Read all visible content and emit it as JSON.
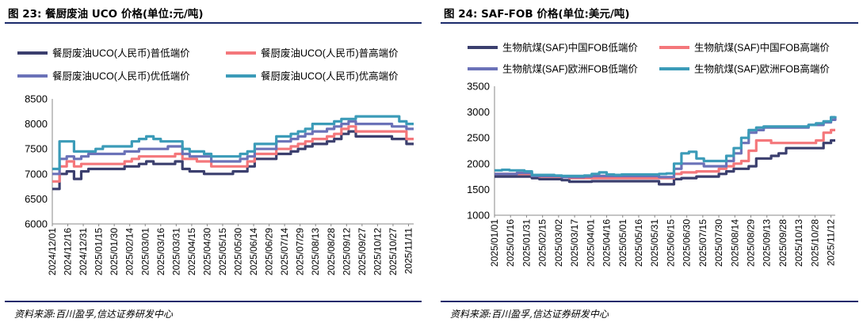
{
  "figures": [
    {
      "title": "图 23:  餐厨废油 UCO 价格(单位:元/吨)",
      "source": "资料来源:百川盈孚,信达证券研发中心"
    },
    {
      "title": "图 24:  SAF-FOB 价格(单位:美元/吨)",
      "source": "资料来源:百川盈孚,信达证券研发中心"
    }
  ],
  "colors": {
    "rule": "#1b2a6b",
    "series_dark": "#3b3f6e",
    "series_red": "#f4777b",
    "series_purple": "#6b72b8",
    "series_teal": "#3b9bb8"
  },
  "chart_data": [
    {
      "type": "line",
      "title": "",
      "xlabel": "",
      "ylabel": "",
      "ylim": [
        6000,
        8500
      ],
      "yticks": [
        "6000",
        "6500",
        "7000",
        "7500",
        "8000",
        "8500"
      ],
      "grid": false,
      "legend": "top, 2 columns",
      "x_tick_labels": [
        "2024/12/01",
        "2024/12/16",
        "2024/12/31",
        "2025/01/15",
        "2025/01/30",
        "2025/02/14",
        "2025/03/01",
        "2025/03/16",
        "2025/03/31",
        "2025/04/15",
        "2025/04/30",
        "2025/05/15",
        "2025/05/30",
        "2025/06/14",
        "2025/06/29",
        "2025/07/14",
        "2025/07/29",
        "2025/08/13",
        "2025/08/28",
        "2025/09/12",
        "2025/09/27",
        "2025/10/12",
        "2025/10/27",
        "2025/11/11"
      ],
      "x": [
        "2024/12/01",
        "2024/12/08",
        "2024/12/15",
        "2024/12/22",
        "2024/12/29",
        "2025/01/05",
        "2025/01/12",
        "2025/01/19",
        "2025/01/26",
        "2025/02/02",
        "2025/02/09",
        "2025/02/16",
        "2025/02/23",
        "2025/03/02",
        "2025/03/09",
        "2025/03/16",
        "2025/03/23",
        "2025/03/30",
        "2025/04/06",
        "2025/04/13",
        "2025/04/20",
        "2025/04/27",
        "2025/05/04",
        "2025/05/11",
        "2025/05/18",
        "2025/05/25",
        "2025/06/01",
        "2025/06/08",
        "2025/06/15",
        "2025/06/22",
        "2025/06/29",
        "2025/07/06",
        "2025/07/13",
        "2025/07/20",
        "2025/07/27",
        "2025/08/03",
        "2025/08/10",
        "2025/08/17",
        "2025/08/24",
        "2025/08/31",
        "2025/09/07",
        "2025/09/14",
        "2025/09/21",
        "2025/09/28",
        "2025/10/05",
        "2025/10/12",
        "2025/10/19",
        "2025/10/26",
        "2025/11/02",
        "2025/11/09",
        "2025/11/16"
      ],
      "series": [
        {
          "name": "餐厨废油UCO(人民币)普低端价",
          "color": "#3b3f6e",
          "values": [
            6700,
            7000,
            7050,
            6900,
            7050,
            7100,
            7100,
            7100,
            7100,
            7100,
            7150,
            7150,
            7200,
            7250,
            7200,
            7200,
            7200,
            7250,
            7100,
            7050,
            7050,
            7000,
            7000,
            7000,
            7000,
            7050,
            7050,
            7150,
            7300,
            7300,
            7300,
            7400,
            7400,
            7450,
            7500,
            7550,
            7600,
            7600,
            7650,
            7700,
            7800,
            7850,
            7750,
            7750,
            7750,
            7750,
            7750,
            7700,
            7700,
            7600,
            7600
          ]
        },
        {
          "name": "餐厨废油UCO(人民币)普高端价",
          "color": "#f4777b",
          "values": [
            6850,
            7150,
            7250,
            7150,
            7200,
            7200,
            7200,
            7200,
            7200,
            7200,
            7250,
            7300,
            7350,
            7350,
            7350,
            7350,
            7350,
            7400,
            7300,
            7300,
            7250,
            7250,
            7150,
            7150,
            7150,
            7150,
            7150,
            7250,
            7400,
            7400,
            7400,
            7500,
            7500,
            7550,
            7600,
            7650,
            7700,
            7700,
            7750,
            7800,
            7900,
            7950,
            7850,
            7850,
            7850,
            7850,
            7850,
            7850,
            7850,
            7700,
            7700
          ]
        },
        {
          "name": "餐厨废油UCO(人民币)优低端价",
          "color": "#6b72b8",
          "values": [
            7000,
            7300,
            7350,
            7300,
            7350,
            7400,
            7400,
            7400,
            7400,
            7400,
            7450,
            7450,
            7500,
            7500,
            7500,
            7500,
            7550,
            7550,
            7400,
            7350,
            7350,
            7350,
            7250,
            7250,
            7250,
            7250,
            7300,
            7350,
            7500,
            7500,
            7500,
            7650,
            7650,
            7700,
            7750,
            7800,
            7850,
            7850,
            7900,
            7950,
            8000,
            8050,
            8000,
            8000,
            8000,
            8000,
            8000,
            7950,
            7950,
            7900,
            7900
          ]
        },
        {
          "name": "餐厨废油UCO(人民币)优高端价",
          "color": "#3b9bb8",
          "values": [
            7100,
            7650,
            7650,
            7450,
            7450,
            7450,
            7500,
            7550,
            7550,
            7550,
            7550,
            7650,
            7700,
            7750,
            7700,
            7650,
            7650,
            7650,
            7500,
            7450,
            7450,
            7400,
            7350,
            7350,
            7350,
            7350,
            7400,
            7450,
            7600,
            7600,
            7600,
            7750,
            7750,
            7800,
            7850,
            7900,
            8000,
            8000,
            8000,
            8050,
            8100,
            8100,
            8150,
            8150,
            8150,
            8150,
            8150,
            8150,
            8050,
            8000,
            8000
          ]
        }
      ]
    },
    {
      "type": "line",
      "title": "",
      "xlabel": "",
      "ylabel": "",
      "ylim": [
        1000,
        3500
      ],
      "yticks": [
        "1000",
        "1500",
        "2000",
        "2500",
        "3000",
        "3500"
      ],
      "grid": false,
      "legend": "top, 2 columns",
      "x_tick_labels": [
        "2025/01/01",
        "2025/01/16",
        "2025/01/31",
        "2025/02/15",
        "2025/03/02",
        "2025/03/17",
        "2025/04/01",
        "2025/04/16",
        "2025/05/01",
        "2025/05/16",
        "2025/05/31",
        "2025/06/15",
        "2025/06/30",
        "2025/07/15",
        "2025/07/30",
        "2025/08/14",
        "2025/08/29",
        "2025/09/13",
        "2025/09/28",
        "2025/10/13",
        "2025/10/28",
        "2025/11/12"
      ],
      "x": [
        "2025/01/01",
        "2025/01/08",
        "2025/01/15",
        "2025/01/22",
        "2025/01/29",
        "2025/02/05",
        "2025/02/12",
        "2025/02/19",
        "2025/02/26",
        "2025/03/05",
        "2025/03/12",
        "2025/03/19",
        "2025/03/26",
        "2025/04/02",
        "2025/04/09",
        "2025/04/16",
        "2025/04/23",
        "2025/04/30",
        "2025/05/07",
        "2025/05/14",
        "2025/05/21",
        "2025/05/28",
        "2025/06/04",
        "2025/06/11",
        "2025/06/18",
        "2025/06/25",
        "2025/07/02",
        "2025/07/09",
        "2025/07/16",
        "2025/07/23",
        "2025/07/30",
        "2025/08/06",
        "2025/08/13",
        "2025/08/20",
        "2025/08/27",
        "2025/09/03",
        "2025/09/10",
        "2025/09/17",
        "2025/09/24",
        "2025/10/01",
        "2025/10/08",
        "2025/10/15",
        "2025/10/22",
        "2025/10/29",
        "2025/11/05",
        "2025/11/12",
        "2025/11/16"
      ],
      "series": [
        {
          "name": "生物航煤(SAF)中国FOB低端价",
          "color": "#3b3f6e",
          "values": [
            1750,
            1750,
            1750,
            1750,
            1750,
            1720,
            1700,
            1700,
            1700,
            1680,
            1650,
            1650,
            1650,
            1660,
            1660,
            1660,
            1660,
            1660,
            1660,
            1660,
            1660,
            1660,
            1600,
            1600,
            1700,
            1720,
            1720,
            1750,
            1750,
            1750,
            1800,
            1850,
            1900,
            1900,
            1950,
            2100,
            2100,
            2150,
            2200,
            2300,
            2300,
            2300,
            2300,
            2300,
            2400,
            2450,
            2450
          ]
        },
        {
          "name": "生物航煤(SAF)中国FOB高端价",
          "color": "#f4777b",
          "values": [
            1800,
            1800,
            1800,
            1800,
            1800,
            1760,
            1750,
            1750,
            1750,
            1740,
            1720,
            1720,
            1720,
            1720,
            1720,
            1720,
            1720,
            1720,
            1720,
            1720,
            1720,
            1720,
            1720,
            1720,
            1800,
            1830,
            1830,
            1850,
            1850,
            1850,
            1900,
            1950,
            2000,
            2050,
            2250,
            2450,
            2450,
            2400,
            2400,
            2400,
            2400,
            2400,
            2400,
            2450,
            2600,
            2650,
            2650
          ]
        },
        {
          "name": "生物航煤(SAF)欧洲FOB低端价",
          "color": "#6b72b8",
          "values": [
            1800,
            1800,
            1800,
            1820,
            1820,
            1760,
            1760,
            1760,
            1760,
            1740,
            1740,
            1740,
            1750,
            1760,
            1760,
            1760,
            1760,
            1760,
            1760,
            1760,
            1760,
            1760,
            1740,
            1740,
            1900,
            2000,
            2000,
            2000,
            1950,
            1950,
            1950,
            2050,
            2200,
            2400,
            2600,
            2650,
            2700,
            2700,
            2700,
            2700,
            2700,
            2700,
            2750,
            2750,
            2800,
            2850,
            2900
          ]
        },
        {
          "name": "生物航煤(SAF)欧洲FOB高端价",
          "color": "#3b9bb8",
          "values": [
            1870,
            1880,
            1870,
            1870,
            1850,
            1780,
            1780,
            1780,
            1770,
            1760,
            1760,
            1760,
            1770,
            1800,
            1830,
            1790,
            1780,
            1790,
            1790,
            1790,
            1790,
            1790,
            1800,
            1810,
            2000,
            2200,
            2230,
            2100,
            2050,
            2050,
            2050,
            2150,
            2300,
            2500,
            2650,
            2700,
            2720,
            2720,
            2720,
            2720,
            2720,
            2720,
            2750,
            2780,
            2820,
            2900,
            2920
          ]
        }
      ]
    }
  ]
}
